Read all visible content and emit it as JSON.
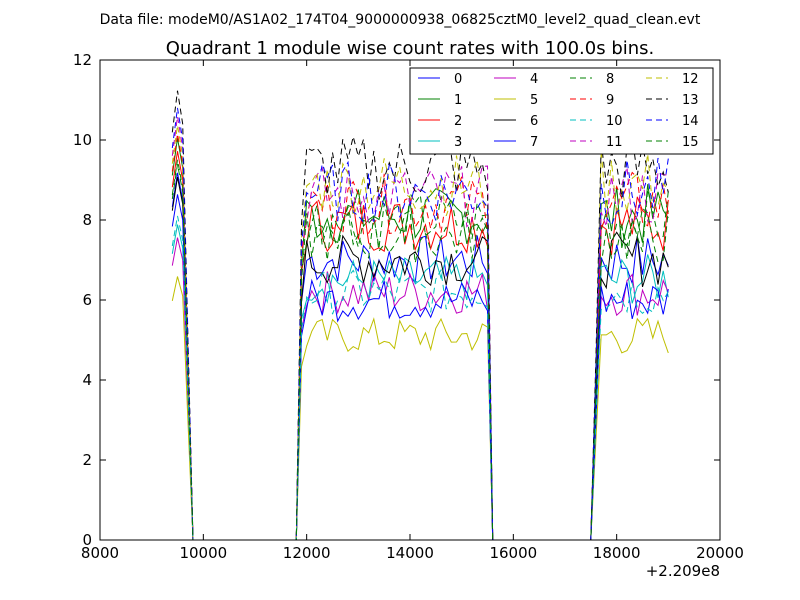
{
  "chart_data": {
    "type": "line",
    "suptitle": "Data file: modeM0/AS1A02_174T04_9000000938_06825cztM0_level2_quad_clean.evt",
    "title": "Quadrant 1 module wise count rates with 100.0s bins.",
    "xlabel": "",
    "ylabel": "",
    "x_offset_label": "+2.209e8",
    "xlim": [
      8000,
      20000
    ],
    "ylim": [
      0,
      12
    ],
    "xticks": [
      8000,
      10000,
      12000,
      14000,
      16000,
      18000,
      20000
    ],
    "yticks": [
      0,
      2,
      4,
      6,
      8,
      10,
      12
    ],
    "grid": false,
    "legend_position": "top-right",
    "segments": [
      {
        "x_start": 9400,
        "bin": 100,
        "count": 4
      },
      {
        "x_start": 9800,
        "bin": 100,
        "count": 21
      },
      {
        "x_start": 11900,
        "bin": 100,
        "count": 37
      },
      {
        "x_start": 15600,
        "bin": 100,
        "count": 20
      },
      {
        "x_start": 17600,
        "bin": 100,
        "count": 15
      }
    ],
    "series": [
      {
        "name": "0",
        "color": "#0000ff",
        "dash": false,
        "level": 7.0,
        "edge": 8.5
      },
      {
        "name": "1",
        "color": "#008000",
        "dash": false,
        "level": 8.1,
        "edge": 9.3
      },
      {
        "name": "2",
        "color": "#ff0000",
        "dash": false,
        "level": 7.9,
        "edge": 9.0
      },
      {
        "name": "3",
        "color": "#00bfbf",
        "dash": false,
        "level": 6.5,
        "edge": 7.3
      },
      {
        "name": "4",
        "color": "#bf00bf",
        "dash": false,
        "level": 6.2,
        "edge": 7.0
      },
      {
        "name": "5",
        "color": "#bfbf00",
        "dash": false,
        "level": 5.1,
        "edge": 6.1
      },
      {
        "name": "6",
        "color": "#000000",
        "dash": false,
        "level": 7.0,
        "edge": 8.4
      },
      {
        "name": "7",
        "color": "#0000ff",
        "dash": false,
        "level": 6.0,
        "edge": 8.0
      },
      {
        "name": "8",
        "color": "#008000",
        "dash": true,
        "level": 8.0,
        "edge": 8.8
      },
      {
        "name": "9",
        "color": "#ff0000",
        "dash": true,
        "level": 8.4,
        "edge": 9.4
      },
      {
        "name": "10",
        "color": "#00bfbf",
        "dash": true,
        "level": 6.2,
        "edge": 7.5
      },
      {
        "name": "11",
        "color": "#bf00bf",
        "dash": true,
        "level": 8.6,
        "edge": 9.8
      },
      {
        "name": "12",
        "color": "#bfbf00",
        "dash": true,
        "level": 8.9,
        "edge": 9.6
      },
      {
        "name": "13",
        "color": "#000000",
        "dash": true,
        "level": 9.3,
        "edge": 10.4
      },
      {
        "name": "14",
        "color": "#0000ff",
        "dash": true,
        "level": 8.7,
        "edge": 10.0
      },
      {
        "name": "15",
        "color": "#008000",
        "dash": true,
        "level": 7.6,
        "edge": 8.7
      }
    ]
  }
}
